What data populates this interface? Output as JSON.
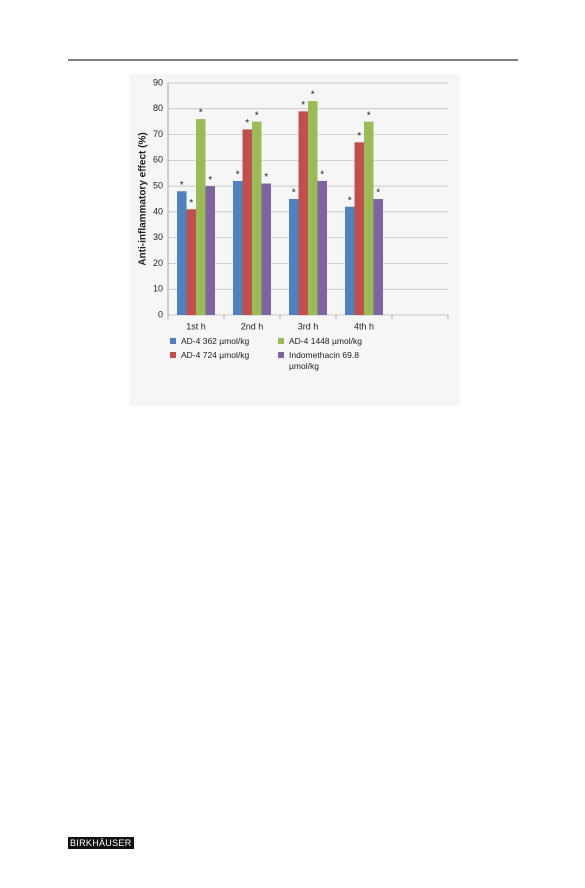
{
  "chart_data": {
    "type": "bar",
    "y_label": "Anti-inflammatory effect (%)",
    "categories": [
      "1st h",
      "2nd h",
      "3rd h",
      "4th h",
      null
    ],
    "series": [
      {
        "name": "AD-4 362 µmol/kg",
        "color": "#4f81bd",
        "values": [
          48,
          52,
          45,
          42,
          null
        ]
      },
      {
        "name": "AD-4 724 µmol/kg",
        "color": "#c0504d",
        "values": [
          41,
          72,
          79,
          67,
          null
        ]
      },
      {
        "name": "AD-4 1448 µmol/kg",
        "color": "#9bbb59",
        "values": [
          76,
          75,
          83,
          75,
          null
        ]
      },
      {
        "name": "Indomethacin 69.8 µmol/kg",
        "color": "#8064a2",
        "values": [
          50,
          51,
          52,
          45,
          null
        ]
      }
    ],
    "bar_annotation": "*",
    "ylim": [
      0,
      90
    ],
    "yticks": [
      0,
      10,
      20,
      30,
      40,
      50,
      60,
      70,
      80,
      90
    ],
    "grid": true
  },
  "footer": {
    "publisher": "BIRKHÄUSER"
  }
}
